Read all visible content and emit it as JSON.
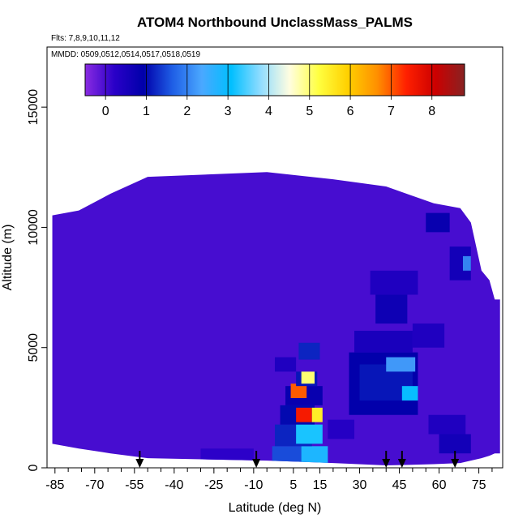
{
  "chart_data": {
    "type": "heatmap",
    "title": "ATOM4 Northbound UnclassMass_PALMS",
    "subtitle_lines": [
      "Flts: 7,8,9,10,11,12",
      "MMDD: 0509,0512,0514,0517,0518,0519"
    ],
    "xlabel": "Latitude (deg N)",
    "ylabel": "Altitude (m)",
    "xlim": [
      -88,
      84
    ],
    "ylim": [
      0,
      17500
    ],
    "xticks": [
      -85,
      -70,
      -55,
      -40,
      -25,
      -10,
      5,
      15,
      30,
      45,
      60,
      75
    ],
    "yticks": [
      0,
      5000,
      10000,
      15000
    ],
    "colorbar": {
      "ticks": [
        0,
        1,
        2,
        3,
        4,
        5,
        6,
        7,
        8
      ],
      "range": [
        -0.5,
        8.8
      ],
      "stops": [
        "#8a2be2",
        "#2a00c8",
        "#0000aa",
        "#1f5fe6",
        "#4aa8ff",
        "#00bfff",
        "#8fdcff",
        "#fffde0",
        "#ffff40",
        "#ffd000",
        "#ff9000",
        "#ff2000",
        "#cc0000",
        "#882222"
      ]
    },
    "arrow_latitudes": [
      -53,
      -9,
      40,
      46,
      66
    ],
    "coverage": [
      [
        -86,
        1000,
        10500
      ],
      [
        -76,
        800,
        10700
      ],
      [
        -64,
        600,
        11400
      ],
      [
        -50,
        400,
        12100
      ],
      [
        -5,
        300,
        12300
      ],
      [
        20,
        200,
        12000
      ],
      [
        40,
        100,
        11700
      ],
      [
        58,
        150,
        11000
      ],
      [
        68,
        200,
        10800
      ],
      [
        72,
        300,
        10200
      ],
      [
        76,
        400,
        8200
      ],
      [
        79,
        500,
        7800
      ],
      [
        81,
        600,
        7000
      ]
    ],
    "cells": [
      {
        "lat": [
          -3,
          10
        ],
        "alt": [
          0,
          900
        ],
        "v": 1.5
      },
      {
        "lat": [
          8,
          18
        ],
        "alt": [
          200,
          900
        ],
        "v": 2.8
      },
      {
        "lat": [
          -2,
          12
        ],
        "alt": [
          900,
          1800
        ],
        "v": 1.2
      },
      {
        "lat": [
          6,
          16
        ],
        "alt": [
          1000,
          1800
        ],
        "v": 3.2
      },
      {
        "lat": [
          0,
          13
        ],
        "alt": [
          1800,
          2600
        ],
        "v": 1.0
      },
      {
        "lat": [
          6,
          12
        ],
        "alt": [
          1900,
          2500
        ],
        "v": 7.5
      },
      {
        "lat": [
          12,
          16
        ],
        "alt": [
          1900,
          2500
        ],
        "v": 5.5
      },
      {
        "lat": [
          2,
          16
        ],
        "alt": [
          2600,
          3400
        ],
        "v": 0.8
      },
      {
        "lat": [
          4,
          10
        ],
        "alt": [
          2900,
          3500
        ],
        "v": 7.0
      },
      {
        "lat": [
          6,
          14
        ],
        "alt": [
          3400,
          4000
        ],
        "v": 1.1
      },
      {
        "lat": [
          8,
          13
        ],
        "alt": [
          3500,
          4000
        ],
        "v": 5.0
      },
      {
        "lat": [
          7,
          15
        ],
        "alt": [
          4500,
          5200
        ],
        "v": 1.2
      },
      {
        "lat": [
          26,
          52
        ],
        "alt": [
          2200,
          4800
        ],
        "v": 0.9
      },
      {
        "lat": [
          30,
          50
        ],
        "alt": [
          2800,
          4300
        ],
        "v": 1.1
      },
      {
        "lat": [
          40,
          51
        ],
        "alt": [
          4000,
          4600
        ],
        "v": 2.2
      },
      {
        "lat": [
          46,
          52
        ],
        "alt": [
          2800,
          3400
        ],
        "v": 3.0
      },
      {
        "lat": [
          28,
          50
        ],
        "alt": [
          4800,
          5700
        ],
        "v": 0.5
      },
      {
        "lat": [
          36,
          48
        ],
        "alt": [
          6000,
          7200
        ],
        "v": 0.7
      },
      {
        "lat": [
          34,
          52
        ],
        "alt": [
          7200,
          8200
        ],
        "v": 0.4
      },
      {
        "lat": [
          55,
          64
        ],
        "alt": [
          9800,
          10600
        ],
        "v": 0.8
      },
      {
        "lat": [
          64,
          72
        ],
        "alt": [
          7800,
          9200
        ],
        "v": 0.6
      },
      {
        "lat": [
          69,
          72
        ],
        "alt": [
          8200,
          8800
        ],
        "v": 2.0
      },
      {
        "lat": [
          50,
          62
        ],
        "alt": [
          5000,
          6000
        ],
        "v": 0.4
      },
      {
        "lat": [
          60,
          72
        ],
        "alt": [
          600,
          1400
        ],
        "v": 0.6
      },
      {
        "lat": [
          56,
          70
        ],
        "alt": [
          1400,
          2200
        ],
        "v": 0.4
      },
      {
        "lat": [
          -2,
          6
        ],
        "alt": [
          4000,
          4600
        ],
        "v": 0.4
      },
      {
        "lat": [
          18,
          28
        ],
        "alt": [
          1200,
          2000
        ],
        "v": 0.3
      },
      {
        "lat": [
          -30,
          -10
        ],
        "alt": [
          0,
          800
        ],
        "v": 0.2
      }
    ]
  }
}
